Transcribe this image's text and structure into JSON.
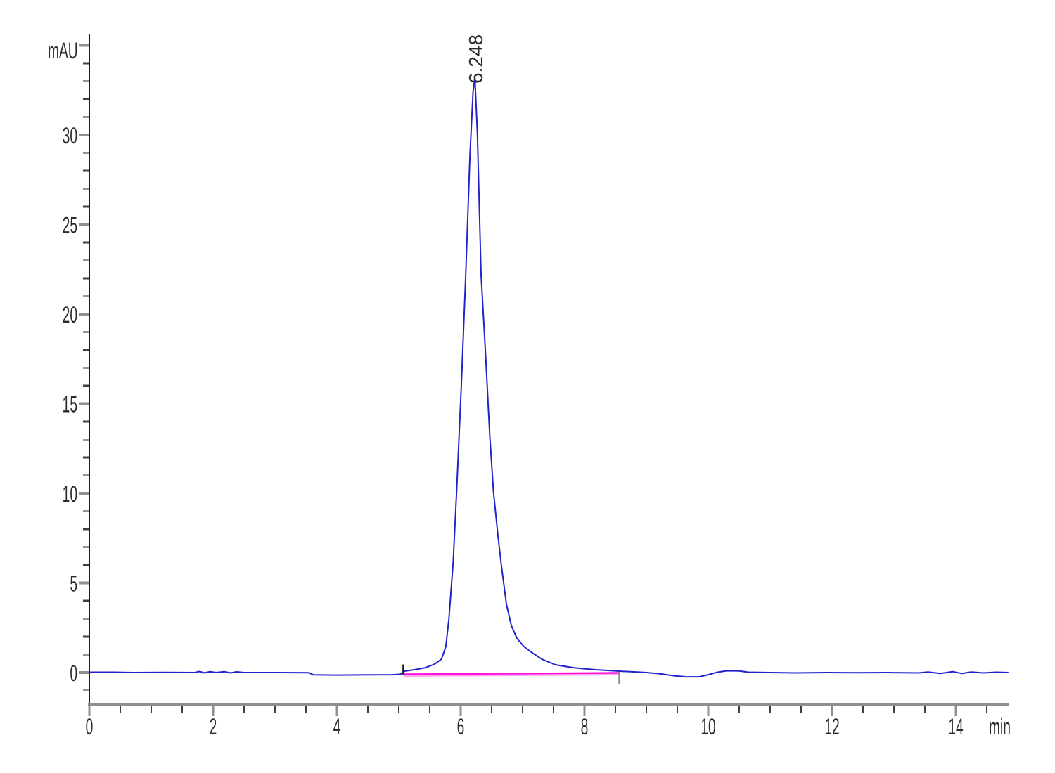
{
  "chart_data": {
    "type": "line",
    "title": "",
    "ylabel": "mAU",
    "xlabel": "min",
    "grid": false,
    "legend": "none",
    "x_axis": {
      "min": 0,
      "max": 14.85,
      "minor_step": 0.5,
      "min_tick": 0,
      "max_tick": 14.5,
      "major_ticks": [
        {
          "value": 0,
          "label": "0"
        },
        {
          "value": 2,
          "label": "2"
        },
        {
          "value": 4,
          "label": "4"
        },
        {
          "value": 6,
          "label": "6"
        },
        {
          "value": 8,
          "label": "8"
        },
        {
          "value": 10,
          "label": "10"
        },
        {
          "value": 12,
          "label": "12"
        },
        {
          "value": 14,
          "label": "14"
        }
      ]
    },
    "y_axis": {
      "min": -1.8,
      "max": 35.6,
      "minor_step": 1,
      "min_tick": -1,
      "max_tick": 35,
      "major_ticks": [
        {
          "value": 0,
          "label": "0"
        },
        {
          "value": 5,
          "label": "5"
        },
        {
          "value": 10,
          "label": "10"
        },
        {
          "value": 15,
          "label": "15"
        },
        {
          "value": 20,
          "label": "20"
        },
        {
          "value": 25,
          "label": "25"
        },
        {
          "value": 30,
          "label": "30"
        }
      ]
    },
    "series": [
      {
        "name": "detector-signal",
        "color": "#2222cc",
        "width": 2,
        "points": [
          [
            0,
            0.02
          ],
          [
            0.4,
            0.02
          ],
          [
            0.7,
            0
          ],
          [
            1.2,
            0.01
          ],
          [
            1.7,
            0
          ],
          [
            1.78,
            0.06
          ],
          [
            1.86,
            -0.02
          ],
          [
            1.95,
            0.05
          ],
          [
            2.05,
            0
          ],
          [
            2.18,
            0.05
          ],
          [
            2.28,
            -0.02
          ],
          [
            2.38,
            0.04
          ],
          [
            2.5,
            0
          ],
          [
            3,
            0
          ],
          [
            3.55,
            -0.01
          ],
          [
            3.62,
            -0.13
          ],
          [
            4,
            -0.14
          ],
          [
            4.5,
            -0.13
          ],
          [
            4.9,
            -0.12
          ],
          [
            5.02,
            -0.1
          ],
          [
            5.06,
            -0.02
          ],
          [
            5.09,
            0.08
          ],
          [
            5.26,
            0.16
          ],
          [
            5.43,
            0.27
          ],
          [
            5.58,
            0.47
          ],
          [
            5.69,
            0.75
          ],
          [
            5.76,
            1.45
          ],
          [
            5.81,
            3
          ],
          [
            5.88,
            6.2
          ],
          [
            5.94,
            10.5
          ],
          [
            6.01,
            16
          ],
          [
            6.08,
            22
          ],
          [
            6.15,
            28.9
          ],
          [
            6.2,
            32.4
          ],
          [
            6.23,
            33.2
          ],
          [
            6.27,
            30
          ],
          [
            6.33,
            22.2
          ],
          [
            6.4,
            17.9
          ],
          [
            6.47,
            13.2
          ],
          [
            6.53,
            10.1
          ],
          [
            6.6,
            7.7
          ],
          [
            6.66,
            5.9
          ],
          [
            6.74,
            3.8
          ],
          [
            6.82,
            2.6
          ],
          [
            6.91,
            1.9
          ],
          [
            7.02,
            1.45
          ],
          [
            7.14,
            1.14
          ],
          [
            7.31,
            0.75
          ],
          [
            7.53,
            0.43
          ],
          [
            7.82,
            0.27
          ],
          [
            8.16,
            0.16
          ],
          [
            8.56,
            0.08
          ],
          [
            8.8,
            0.04
          ],
          [
            9,
            0
          ],
          [
            9.2,
            -0.06
          ],
          [
            9.45,
            -0.18
          ],
          [
            9.65,
            -0.24
          ],
          [
            9.85,
            -0.24
          ],
          [
            10,
            -0.12
          ],
          [
            10.15,
            0.02
          ],
          [
            10.3,
            0.1
          ],
          [
            10.5,
            0.09
          ],
          [
            10.65,
            0.02
          ],
          [
            11,
            0
          ],
          [
            11.4,
            -0.02
          ],
          [
            11.9,
            0
          ],
          [
            12.4,
            -0.01
          ],
          [
            12.9,
            0
          ],
          [
            13.4,
            -0.02
          ],
          [
            13.55,
            0.03
          ],
          [
            13.75,
            -0.05
          ],
          [
            13.95,
            0.05
          ],
          [
            14.1,
            -0.05
          ],
          [
            14.25,
            0.03
          ],
          [
            14.45,
            -0.02
          ],
          [
            14.65,
            0.02
          ],
          [
            14.85,
            0
          ]
        ]
      },
      {
        "name": "integration-baseline",
        "color": "#ff10dd",
        "glow_color": "#ffa8f0",
        "width": 2.4,
        "points": [
          [
            5.09,
            -0.1
          ],
          [
            8.57,
            -0.02
          ]
        ]
      }
    ],
    "peaks": [
      {
        "retention_time_label": "6.248",
        "retention_time_min": 6.248,
        "height_mau": 33.2
      }
    ],
    "integration_markers": [
      {
        "name": "integration-start-marker",
        "time_min": 5.07,
        "from_mau": -0.15,
        "to_mau": 0.45,
        "color": "#1a1a1a"
      },
      {
        "name": "integration-end-marker",
        "time_min": 8.56,
        "from_mau": 0.04,
        "to_mau": -0.63,
        "color": "#8a8a8a"
      }
    ],
    "colors": {
      "axis_bar": "#8f8f8f",
      "axis_line": "#1c1c1c",
      "tick_dark": "#3f3f3f",
      "tick_gray": "#969696",
      "text": "#2b2b2b"
    }
  }
}
